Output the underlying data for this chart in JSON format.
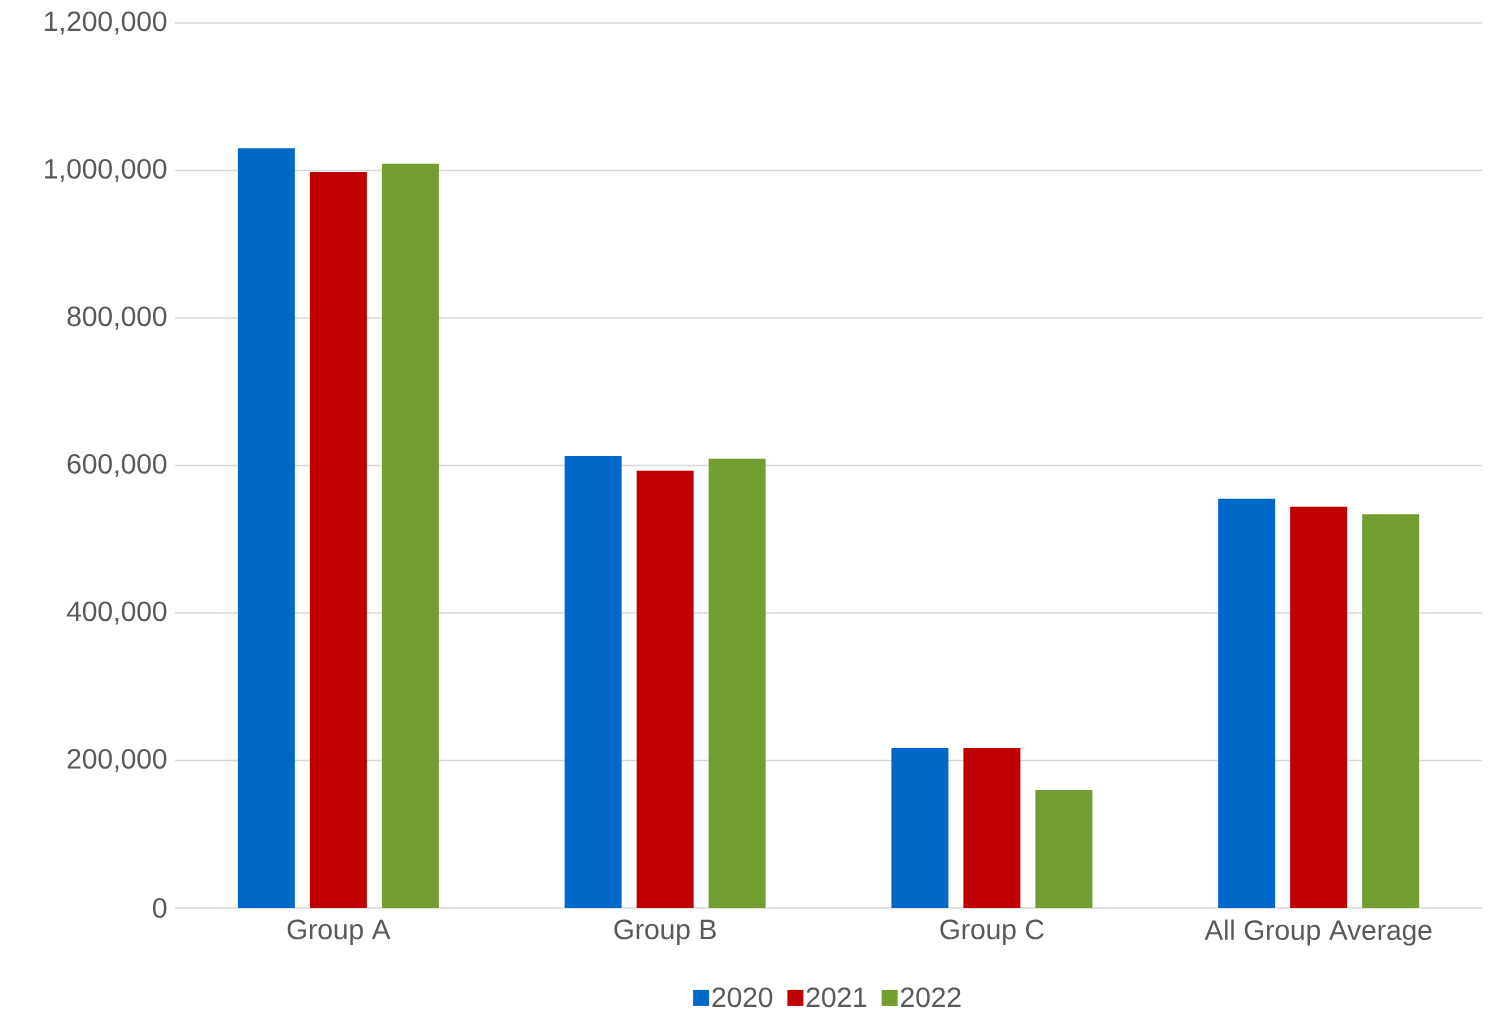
{
  "chart_data": {
    "type": "bar",
    "categories": [
      "Group A",
      "Group B",
      "Group C",
      "All Group Average"
    ],
    "series": [
      {
        "name": "2020",
        "color": "#0068c9",
        "values": [
          1030000,
          613000,
          217000,
          555000
        ]
      },
      {
        "name": "2021",
        "color": "#c00000",
        "values": [
          998000,
          593000,
          217000,
          544000
        ]
      },
      {
        "name": "2022",
        "color": "#739e2f",
        "values": [
          1009000,
          609000,
          160000,
          534000
        ]
      }
    ],
    "ylim": [
      0,
      1200000
    ],
    "yticks": [
      0,
      {
        "value": 200000,
        "label": "200,000"
      },
      {
        "value": 400000,
        "label": "400,000"
      },
      {
        "value": 600000,
        "label": "600,000"
      },
      {
        "value": 800000,
        "label": "800,000"
      },
      {
        "value": 1000000,
        "label": "1,000,000"
      },
      {
        "value": 1200000,
        "label": "1,200,000"
      }
    ],
    "grid": "y",
    "legend": "bottom"
  }
}
